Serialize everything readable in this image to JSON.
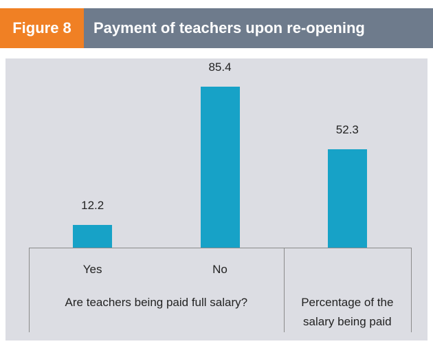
{
  "chart_data": {
    "type": "bar",
    "label": "Figure 8",
    "title": "Payment of teachers upon re-opening",
    "categories": [
      "Yes",
      "No",
      null
    ],
    "values": [
      12.2,
      85.4,
      52.3
    ],
    "color": "#17a2c7",
    "groups": [
      {
        "label": "Are teachers being paid full salary?",
        "size": 2
      },
      {
        "label": "Percentage of the salary being paid",
        "size": 1
      }
    ]
  }
}
